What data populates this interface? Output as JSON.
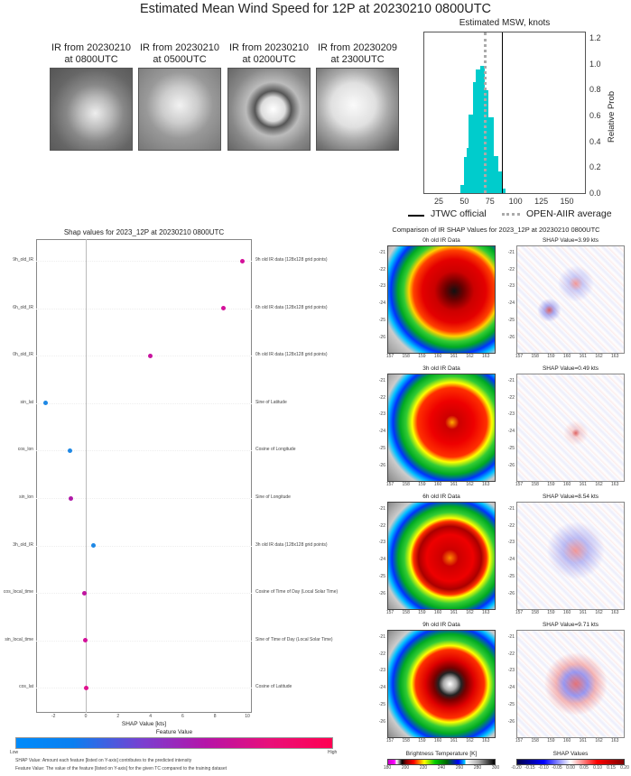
{
  "title": "Estimated Mean Wind Speed for 12P at 20230210 0800UTC",
  "ir_images": [
    {
      "line1": "IR from 20230210",
      "line2": "at 0800UTC"
    },
    {
      "line1": "IR from 20230210",
      "line2": "at 0500UTC"
    },
    {
      "line1": "IR from 20230210",
      "line2": "at 0200UTC"
    },
    {
      "line1": "IR from 20230209",
      "line2": "at 2300UTC"
    }
  ],
  "chart_data": [
    {
      "type": "bar",
      "title": "Estimated MSW, knots",
      "ylabel": "Relative Prob",
      "xlim": [
        10,
        168
      ],
      "ylim": [
        0,
        1.25
      ],
      "xticks": [
        25,
        50,
        75,
        100,
        125,
        150
      ],
      "yticks": [
        "0.0",
        "0.2",
        "0.4",
        "0.6",
        "0.8",
        "1.0",
        "1.2"
      ],
      "bins": [
        [
          15,
          45,
          0.01
        ],
        [
          45,
          48.5,
          0.08
        ],
        [
          48.5,
          51,
          0.29
        ],
        [
          51,
          53,
          0.36
        ],
        [
          53,
          58,
          0.62
        ],
        [
          58,
          60.5,
          0.87
        ],
        [
          60.5,
          65,
          0.97
        ],
        [
          65,
          68.7,
          1.0
        ],
        [
          68.7,
          72,
          0.81
        ],
        [
          72,
          77,
          0.6
        ],
        [
          77,
          81.6,
          0.3
        ],
        [
          81.6,
          85,
          0.18
        ],
        [
          85,
          88.6,
          0.05
        ],
        [
          88.6,
          168,
          0.005
        ]
      ],
      "jtwc_official": 85.5,
      "openaiir_average": 69,
      "legend": {
        "jtwc": "JTWC official",
        "avg": "OPEN-AIIR average"
      },
      "color": "#00cccc"
    },
    {
      "type": "scatter",
      "title": "Shap values for 2023_12P at 20230210 0800UTC",
      "xlabel": "SHAP Value [kts]",
      "xlim": [
        -3.1,
        10.3
      ],
      "xticks": [
        "-2",
        "0",
        "2",
        "4",
        "6",
        "8",
        "10"
      ],
      "features": [
        {
          "name": "9h_old_IR",
          "desc": "9h old IR data (128x128 grid points)",
          "value": 9.71,
          "color": "#d4109a"
        },
        {
          "name": "6h_old_IR",
          "desc": "6h old IR data (128x128 grid points)",
          "value": 8.54,
          "color": "#d4109a"
        },
        {
          "name": "0h_old_IR",
          "desc": "0h old IR data (128x128 grid points)",
          "value": 3.99,
          "color": "#c8149f"
        },
        {
          "name": "sin_lat",
          "desc": "Sine of Latitude",
          "value": -2.5,
          "color": "#1e88e5"
        },
        {
          "name": "cos_lon",
          "desc": "Cosine of Longitude",
          "value": -1.0,
          "color": "#1e88e5"
        },
        {
          "name": "sin_lon",
          "desc": "Sine of Longitude",
          "value": -0.9,
          "color": "#b01aa8"
        },
        {
          "name": "3h_old_IR",
          "desc": "3h old IR data (128x128 grid points)",
          "value": 0.49,
          "color": "#1e88e5"
        },
        {
          "name": "cos_local_time",
          "desc": "Cosine of Time of Day (Local Solar Time)",
          "value": -0.1,
          "color": "#c0149f"
        },
        {
          "name": "sin_local_time",
          "desc": "Sine of Time of Day (Local Solar Time)",
          "value": -0.05,
          "color": "#d4109a"
        },
        {
          "name": "cos_lat",
          "desc": "Cosine of Latitude",
          "value": 0.0,
          "color": "#e0108e"
        }
      ],
      "colorbar": {
        "title": "Feature Value",
        "low": "Low",
        "high": "High"
      },
      "notes": [
        "SHAP Value: Amount each feature [listed on Y-axis] contributes to the predicted intensity",
        "Feature Value: The value of the feature [listed on Y-axis] for the given TC compared to the training dataset"
      ]
    }
  ],
  "comparison": {
    "title": "Comparison of IR SHAP Values for 2023_12P at 20230210 0800UTC",
    "rows": [
      {
        "ir_title": "0h old IR Data",
        "shap_title": "SHAP Value=3.99 kts"
      },
      {
        "ir_title": "3h old IR Data",
        "shap_title": "SHAP Value=0.49 kts"
      },
      {
        "ir_title": "6h old IR Data",
        "shap_title": "SHAP Value=8.54 kts"
      },
      {
        "ir_title": "9h old IR Data",
        "shap_title": "SHAP Value=9.71 kts"
      }
    ],
    "yticks": [
      "-21",
      "-22",
      "-23",
      "-24",
      "-25",
      "-26"
    ],
    "xticks": [
      "157",
      "158",
      "159",
      "160",
      "161",
      "162",
      "163"
    ],
    "bt_colorbar": {
      "title": "Brightness Temperature [K]",
      "ticks": [
        "180",
        "200",
        "220",
        "240",
        "260",
        "280",
        "300"
      ]
    },
    "shap_colorbar": {
      "title": "SHAP Values",
      "ticks": [
        "-0.20",
        "-0.15",
        "-0.10",
        "-0.05",
        "0.00",
        "0.05",
        "0.10",
        "0.15",
        "0.20"
      ]
    }
  }
}
